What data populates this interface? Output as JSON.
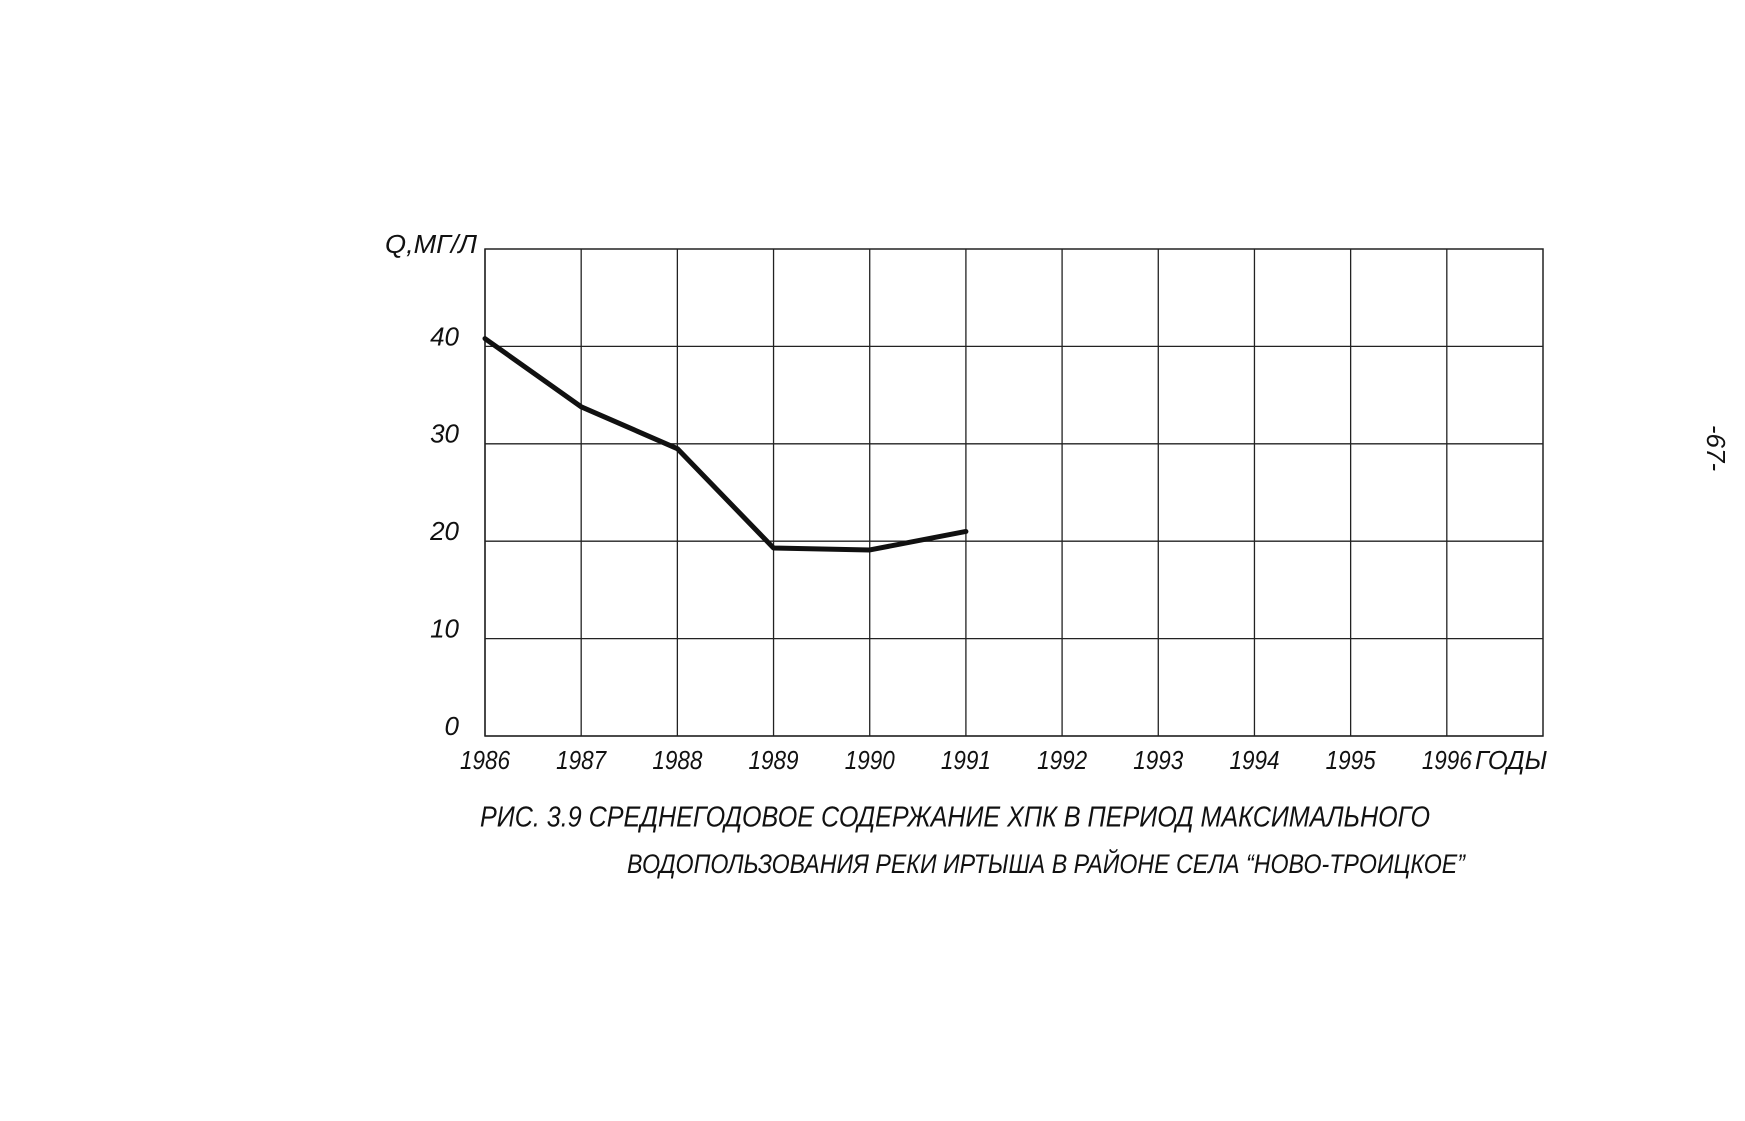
{
  "chart_data": {
    "type": "line",
    "y_label": "Q,МГ/Л",
    "x_label": "ГОДЫ",
    "caption": [
      "РИС. 3.9 СРЕДНЕГОДОВОЕ СОДЕРЖАНИЕ ХПК В ПЕРИОД МАКСИМАЛЬНОГО",
      "ВОДОПОЛЬЗОВАНИЯ РЕКИ ИРТЫША В РАЙОНЕ СЕЛА “НОВО-ТРОИЦКОЕ”"
    ],
    "page_number": "-67-",
    "x": [
      1986,
      1987,
      1988,
      1989,
      1990,
      1991
    ],
    "series": [
      {
        "name": "ХПК",
        "color": "#111111",
        "values": [
          40.8,
          33.8,
          29.5,
          19.3,
          19.1,
          21.0
        ]
      }
    ],
    "xlim": [
      1986,
      1997
    ],
    "xticks": [
      1986,
      1987,
      1988,
      1989,
      1990,
      1991,
      1992,
      1993,
      1994,
      1995,
      1996
    ],
    "ylim": [
      0,
      50
    ],
    "yticks": [
      0,
      10,
      20,
      30,
      40
    ],
    "grid": true,
    "legend": false
  }
}
